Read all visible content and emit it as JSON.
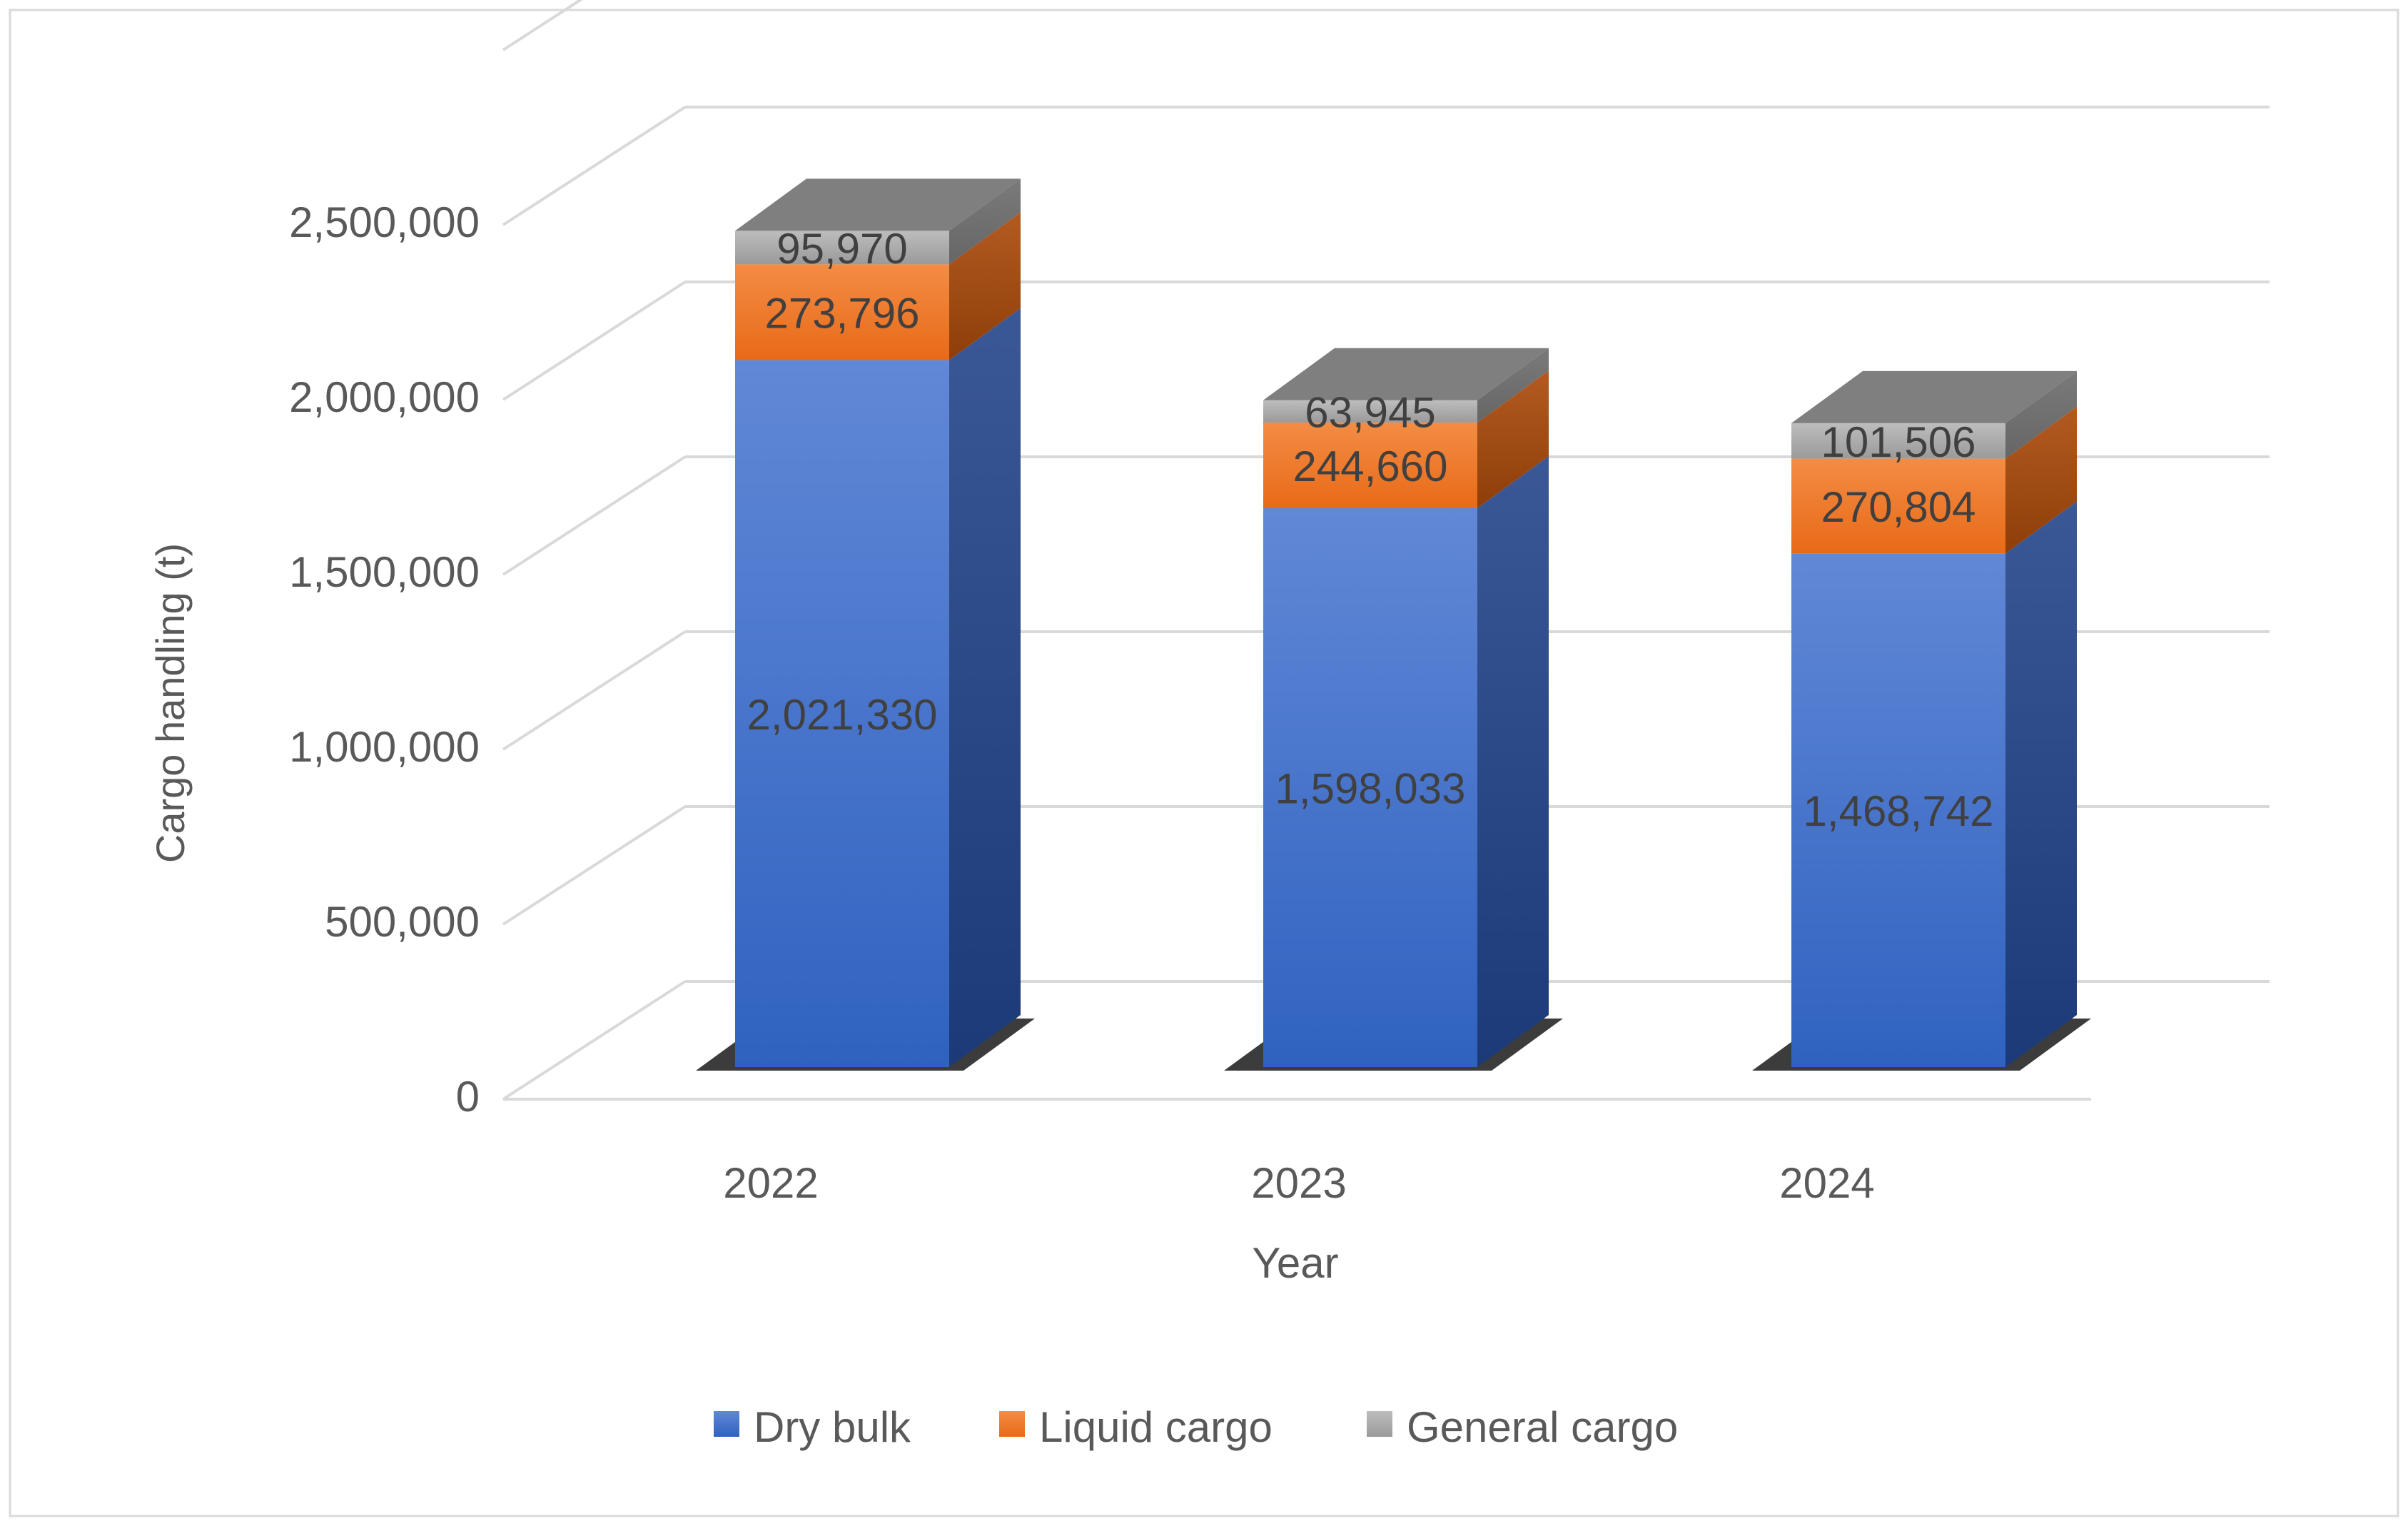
{
  "chart_data": {
    "type": "bar",
    "stacked": true,
    "three_d": true,
    "title": "",
    "xlabel": "Year",
    "ylabel": "Cargo handling (t)",
    "categories": [
      "2022",
      "2023",
      "2024"
    ],
    "series": [
      {
        "name": "Dry bulk",
        "values": [
          2021330,
          1598033,
          1468742
        ],
        "labels": [
          "2,021,330",
          "1,598,033",
          "1,468,742"
        ],
        "color": "#4472C4"
      },
      {
        "name": "Liquid cargo",
        "values": [
          273796,
          244660,
          270804
        ],
        "labels": [
          "273,796",
          "244,660",
          "270,804"
        ],
        "color": "#ED7D31"
      },
      {
        "name": "General cargo",
        "values": [
          95970,
          63945,
          101506
        ],
        "labels": [
          "95,970",
          "63,945",
          "101,506"
        ],
        "color": "#A5A5A5"
      }
    ],
    "ylim": [
      0,
      2500000
    ],
    "y_ticks": [
      "0",
      "500,000",
      "1,000,000",
      "1,500,000",
      "2,000,000",
      "2,500,000"
    ],
    "grid": true,
    "legend_position": "bottom"
  }
}
